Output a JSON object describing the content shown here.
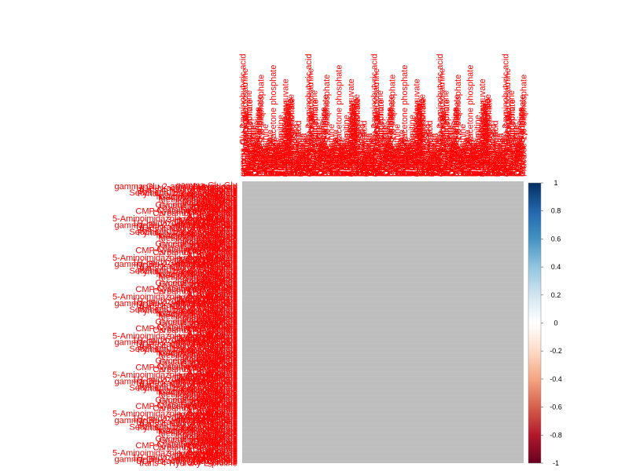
{
  "chart_data": {
    "type": "heatmap",
    "title": "",
    "method": "correlation matrix",
    "row_labels": [
      "gamma-Glu-Glu",
      "gamma-Glu-2-aminobutyric acid",
      "Urocanate",
      "UDP-N-acetylglucosamine",
      "UDP-glucose",
      "trans-4-Hydroxy-L-proline",
      "Thiamine",
      "Sarcosine",
      "Sedoheptulose 7-phosphate",
      "Pyridine-2,3-dicarboxylate",
      "Phosphocreatine",
      "Nicotinamide",
      "N-Acetylglucosamine",
      "N-Acetyl-L-aspartate",
      "myo-Inositol",
      "Methionine sulfoxide",
      "Isocitrate",
      "Isoleucine",
      "Imidazolelactate",
      "Homocysteine",
      "Guanosine",
      "Glycerol 3-phosphate",
      "Glutathione disulfide",
      "Glutamate",
      "GDP-mannose",
      "GDP-fucose",
      "Dihydroorotate",
      "Cysteine sulfinic acid",
      "CMP-N-acetylneuraminate",
      "cis-Aconitate",
      "Carbamoyl phosphate",
      "Betaine",
      "Arginine",
      "ADP-glucose",
      "Adenosine",
      "5-Oxoproline",
      "5-Aminoimidazole ribonucleotide",
      "3-Hydroxybutyrate",
      "2-Oxoglutarate",
      "2-Aminoadipate",
      "1-Methylhistidine",
      "1H-Imidazole-4-propanoate"
    ],
    "column_labels": [
      "gamma-Glu-2-aminobutyric acid",
      "gamma-Glu-Glu",
      "UDP-N-acetylgalactosamine",
      "UDP-glucuronate",
      "Thymidine",
      "Taurine",
      "S-Adenosylmethionine",
      "Ribose 5-phosphate",
      "Pyruvate",
      "Proline",
      "Phenylalanine",
      "Pantothenate",
      "Orotate",
      "Ornithine",
      "Nicotinate",
      "N-Acetylserine",
      "Myristoyl-carnitine",
      "Methyl hexanoate",
      "Glucose 6-phosphate",
      "Fructose 1,6-bisphosphate",
      "Lysine",
      "Leucine",
      "Lactate",
      "Inosine",
      "Hypoxanthine",
      "Histidine",
      "Glycine",
      "Glycerate",
      "Glutamine",
      "Glucuronate",
      "Galactose",
      "Fumarate",
      "Dihydroxyacetone phosphate",
      "Cystine",
      "Cysteine",
      "Creatinine",
      "Creatine",
      "Choline",
      "Citrulline",
      "Carnitine",
      "Butyryl-carnitine",
      "Asparagine",
      "Alanine",
      "Adenine",
      "Acetyl-carnitine",
      "4-Hydroxyphenylpyruvate",
      "3-Phosphoglycerate",
      "2-Hydroxyglutarate",
      "1-Methyladenosine",
      "UDP-galactose",
      "Glutathione disulfide",
      "Nicotinamide riboside",
      "Formiminoglutamate",
      "Urea",
      "H2O",
      "GDP-fucose",
      "Succinate",
      "Pipecolic acid",
      "Malate",
      "Quinolinic acid",
      "Citrate",
      "Kynurenine",
      "Serine",
      "Tyrosine",
      "Tryptophan",
      "Valine",
      "Threonine",
      "Spermidine",
      "Aspartate",
      "Uridine"
    ],
    "n": 300,
    "values_note": "",
    "matrix_color": "#bebebe",
    "colorbar": {
      "range": [
        -1,
        1
      ],
      "ticks": [
        "1",
        "0.8",
        "0.6",
        "0.4",
        "0.2",
        "0",
        "-0.2",
        "-0.4",
        "-0.6",
        "-0.8",
        "-1"
      ],
      "colors": [
        "#053061",
        "#2166ac",
        "#4393c3",
        "#92c5de",
        "#d1e5f0",
        "#ffffff",
        "#fddbc7",
        "#f4a582",
        "#d6604d",
        "#b2182b",
        "#67001f"
      ]
    },
    "label_color": "#ff0000",
    "legend": "right",
    "grid": false
  }
}
